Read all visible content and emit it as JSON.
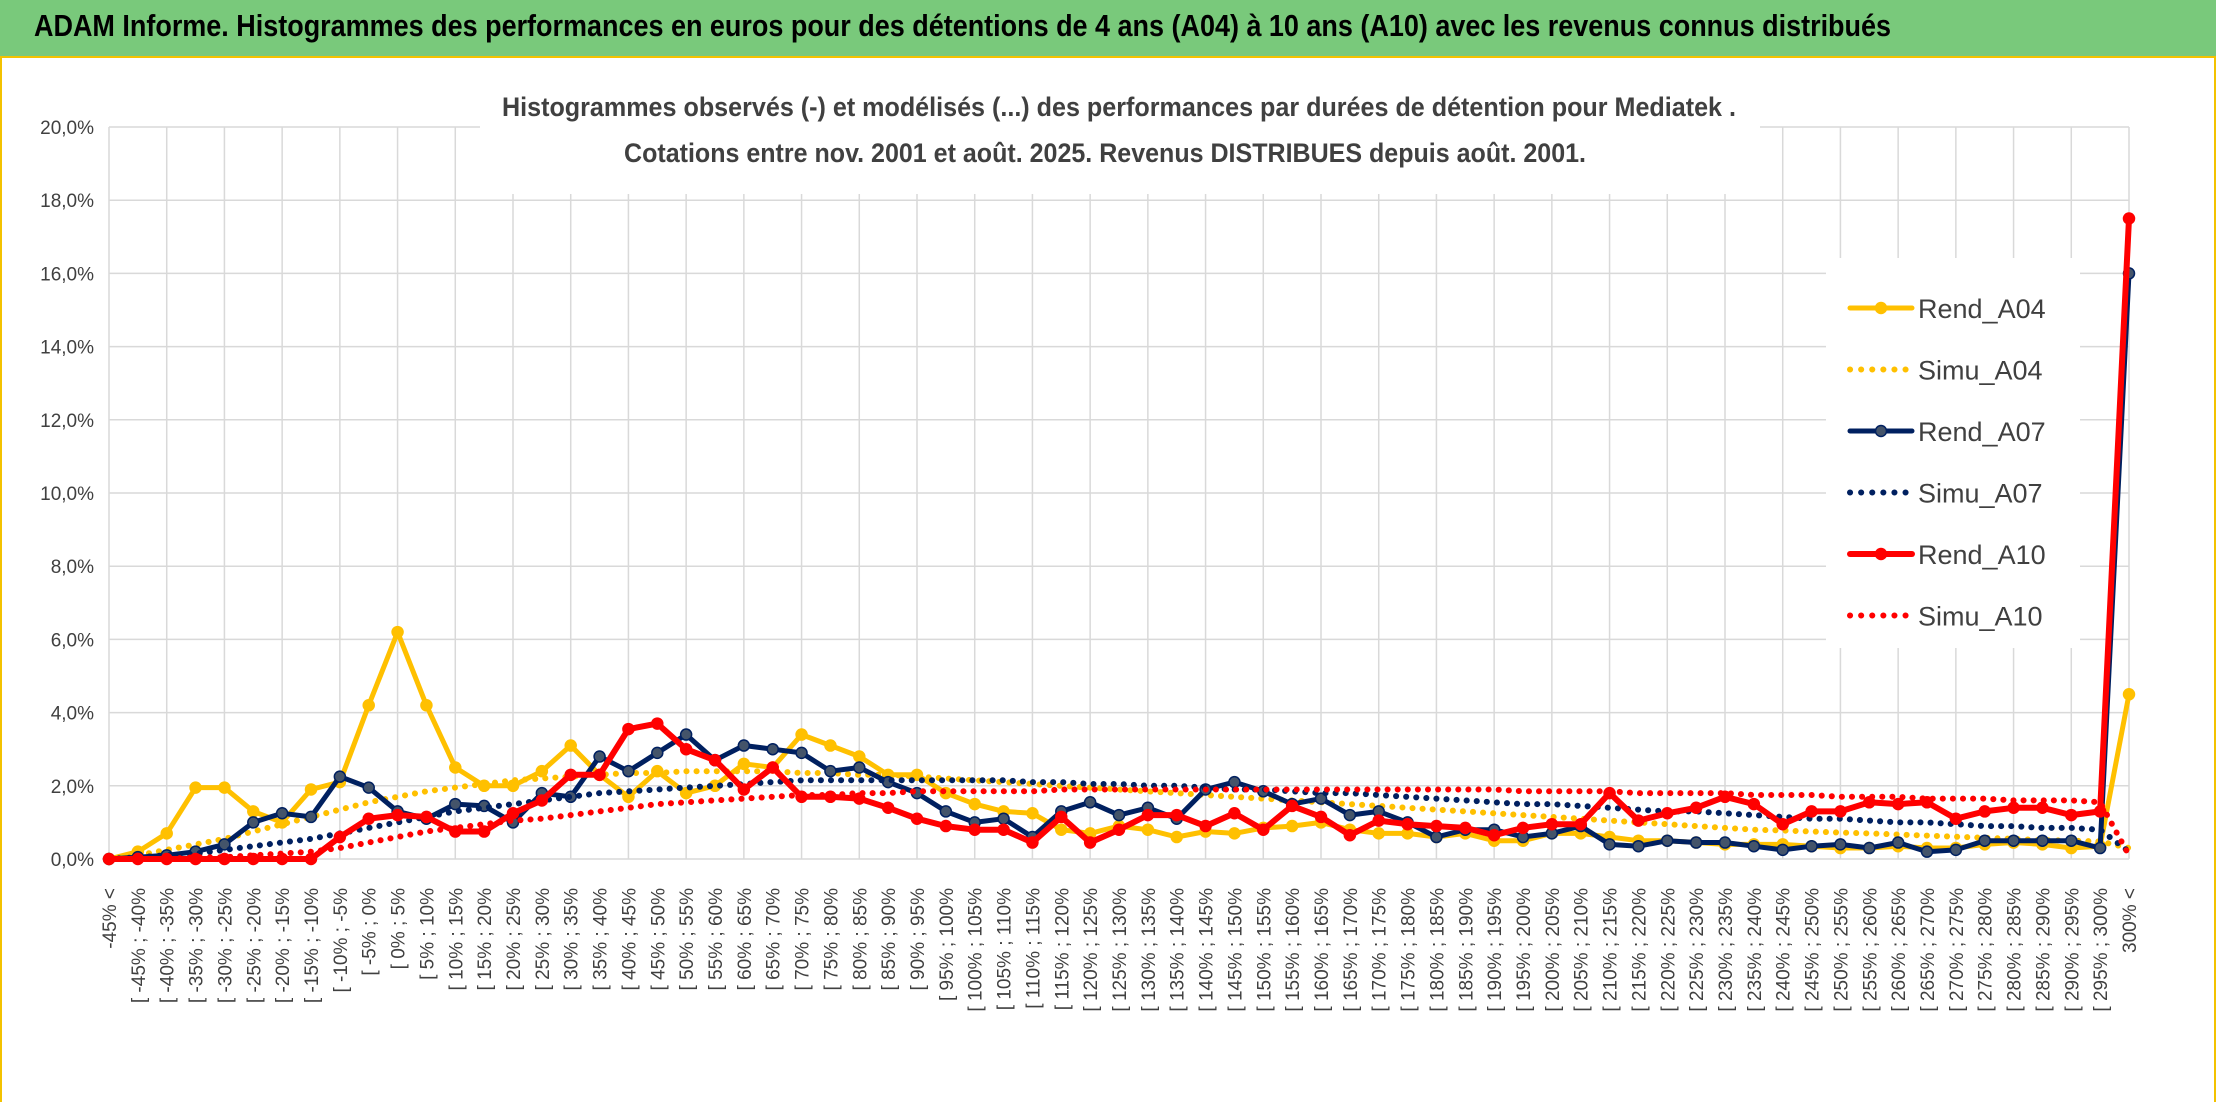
{
  "header": {
    "title": "ADAM Informe. Histogrammes des performances en euros pour des détentions de 4 ans (A04) à 10 ans (A10) avec les revenus connus distribués"
  },
  "chart_data": {
    "type": "line",
    "title_line1": "Histogrammes observés (-) et modélisés (...) des performances par durées de détention pour Mediatek .",
    "title_line2": "Cotations entre nov. 2001 et août. 2025. Revenus DISTRIBUES depuis août. 2001.",
    "ylim": [
      0,
      20
    ],
    "y_ticks": [
      "0,0%",
      "2,0%",
      "4,0%",
      "6,0%",
      "8,0%",
      "10,0%",
      "12,0%",
      "14,0%",
      "16,0%",
      "18,0%",
      "20,0%"
    ],
    "grid": true,
    "legend_position": "right",
    "categories": [
      "-45% <",
      "[ -45% ; -40%",
      "[ -40% ; -35%",
      "[ -35% ; -30%",
      "[ -30% ; -25%",
      "[ -25% ; -20%",
      "[ -20% ; -15%",
      "[ -15% ; -10%",
      "[ -10% ; -5%",
      "[ -5% ; 0%",
      "[ 0% ; 5%",
      "[ 5% ; 10%",
      "[ 10% ; 15%",
      "[ 15% ; 20%",
      "[ 20% ; 25%",
      "[ 25% ; 30%",
      "[ 30% ; 35%",
      "[ 35% ; 40%",
      "[ 40% ; 45%",
      "[ 45% ; 50%",
      "[ 50% ; 55%",
      "[ 55% ; 60%",
      "[ 60% ; 65%",
      "[ 65% ; 70%",
      "[ 70% ; 75%",
      "[ 75% ; 80%",
      "[ 80% ; 85%",
      "[ 85% ; 90%",
      "[ 90% ; 95%",
      "[ 95% ; 100%",
      "[ 100% ; 105%",
      "[ 105% ; 110%",
      "[ 110% ; 115%",
      "[ 115% ; 120%",
      "[ 120% ; 125%",
      "[ 125% ; 130%",
      "[ 130% ; 135%",
      "[ 135% ; 140%",
      "[ 140% ; 145%",
      "[ 145% ; 150%",
      "[ 150% ; 155%",
      "[ 155% ; 160%",
      "[ 160% ; 165%",
      "[ 165% ; 170%",
      "[ 170% ; 175%",
      "[ 175% ; 180%",
      "[ 180% ; 185%",
      "[ 185% ; 190%",
      "[ 190% ; 195%",
      "[ 195% ; 200%",
      "[ 200% ; 205%",
      "[ 205% ; 210%",
      "[ 210% ; 215%",
      "[ 215% ; 220%",
      "[ 220% ; 225%",
      "[ 225% ; 230%",
      "[ 230% ; 235%",
      "[ 235% ; 240%",
      "[ 240% ; 245%",
      "[ 245% ; 250%",
      "[ 250% ; 255%",
      "[ 255% ; 260%",
      "[ 260% ; 265%",
      "[ 265% ; 270%",
      "[ 270% ; 275%",
      "[ 275% ; 280%",
      "[ 280% ; 285%",
      "[ 285% ; 290%",
      "[ 290% ; 295%",
      "[ 295% ; 300%",
      "300% <"
    ],
    "series": [
      {
        "name": "Rend_A04",
        "style": "solid",
        "color": "#ffc000",
        "width": 5,
        "markers": true,
        "values": [
          0,
          0.2,
          0.7,
          1.95,
          1.95,
          1.3,
          1.0,
          1.9,
          2.1,
          4.2,
          6.2,
          4.2,
          2.5,
          2.0,
          2.0,
          2.4,
          3.1,
          2.3,
          1.7,
          2.4,
          1.8,
          2.0,
          2.6,
          2.5,
          3.4,
          3.1,
          2.8,
          2.3,
          2.3,
          1.8,
          1.5,
          1.3,
          1.25,
          0.8,
          0.7,
          0.9,
          0.8,
          0.6,
          0.75,
          0.7,
          0.85,
          0.9,
          1.0,
          0.8,
          0.7,
          0.7,
          0.6,
          0.7,
          0.5,
          0.5,
          0.7,
          0.7,
          0.6,
          0.5,
          0.5,
          0.45,
          0.4,
          0.4,
          0.4,
          0.35,
          0.3,
          0.3,
          0.35,
          0.3,
          0.3,
          0.4,
          0.45,
          0.4,
          0.3,
          0.35,
          4.5
        ]
      },
      {
        "name": "Simu_A04",
        "style": "dotted",
        "color": "#ffc000",
        "width": 5,
        "markers": false,
        "values": [
          0,
          0.1,
          0.25,
          0.4,
          0.55,
          0.75,
          0.95,
          1.15,
          1.35,
          1.55,
          1.7,
          1.85,
          1.95,
          2.05,
          2.15,
          2.2,
          2.25,
          2.3,
          2.35,
          2.35,
          2.4,
          2.4,
          2.4,
          2.4,
          2.35,
          2.35,
          2.3,
          2.3,
          2.25,
          2.2,
          2.15,
          2.1,
          2.05,
          2.0,
          1.95,
          1.9,
          1.85,
          1.8,
          1.75,
          1.7,
          1.65,
          1.6,
          1.55,
          1.5,
          1.45,
          1.4,
          1.35,
          1.3,
          1.25,
          1.2,
          1.15,
          1.1,
          1.05,
          1.0,
          0.95,
          0.9,
          0.85,
          0.8,
          0.78,
          0.75,
          0.72,
          0.7,
          0.67,
          0.64,
          0.61,
          0.58,
          0.55,
          0.52,
          0.5,
          0.48,
          0.3
        ]
      },
      {
        "name": "Rend_A07",
        "style": "solid",
        "color": "#002060",
        "width": 5,
        "markers": true,
        "values": [
          0,
          0.05,
          0.1,
          0.2,
          0.4,
          1.0,
          1.25,
          1.15,
          2.25,
          1.95,
          1.3,
          1.1,
          1.5,
          1.45,
          1.0,
          1.8,
          1.7,
          2.8,
          2.4,
          2.9,
          3.4,
          2.7,
          3.1,
          3.0,
          2.9,
          2.4,
          2.5,
          2.1,
          1.8,
          1.3,
          1.0,
          1.1,
          0.6,
          1.3,
          1.55,
          1.2,
          1.4,
          1.1,
          1.9,
          2.1,
          1.85,
          1.5,
          1.65,
          1.2,
          1.3,
          1.0,
          0.6,
          0.8,
          0.8,
          0.6,
          0.7,
          0.9,
          0.4,
          0.35,
          0.5,
          0.45,
          0.45,
          0.35,
          0.25,
          0.35,
          0.4,
          0.3,
          0.45,
          0.2,
          0.25,
          0.5,
          0.5,
          0.5,
          0.5,
          0.3,
          16.0
        ]
      },
      {
        "name": "Simu_A07",
        "style": "dotted",
        "color": "#002060",
        "width": 5,
        "markers": false,
        "values": [
          0,
          0.05,
          0.1,
          0.15,
          0.25,
          0.35,
          0.45,
          0.55,
          0.7,
          0.85,
          1.0,
          1.15,
          1.3,
          1.4,
          1.5,
          1.6,
          1.7,
          1.8,
          1.85,
          1.9,
          1.95,
          2.0,
          2.05,
          2.1,
          2.15,
          2.15,
          2.15,
          2.15,
          2.15,
          2.15,
          2.15,
          2.15,
          2.1,
          2.1,
          2.05,
          2.05,
          2.0,
          2.0,
          1.95,
          1.9,
          1.9,
          1.85,
          1.8,
          1.8,
          1.75,
          1.7,
          1.65,
          1.6,
          1.55,
          1.5,
          1.5,
          1.45,
          1.4,
          1.35,
          1.3,
          1.3,
          1.25,
          1.2,
          1.15,
          1.1,
          1.1,
          1.05,
          1.0,
          1.0,
          0.95,
          0.9,
          0.9,
          0.85,
          0.85,
          0.8,
          0.2
        ]
      },
      {
        "name": "Rend_A10",
        "style": "solid",
        "color": "#ff0000",
        "width": 6,
        "markers": true,
        "values": [
          0,
          0,
          0,
          0,
          0,
          0,
          0,
          0,
          0.6,
          1.1,
          1.2,
          1.15,
          0.75,
          0.75,
          1.25,
          1.6,
          2.3,
          2.3,
          3.55,
          3.7,
          3.0,
          2.7,
          1.9,
          2.5,
          1.7,
          1.7,
          1.65,
          1.4,
          1.1,
          0.9,
          0.8,
          0.8,
          0.45,
          1.15,
          0.45,
          0.8,
          1.2,
          1.2,
          0.9,
          1.25,
          0.8,
          1.45,
          1.15,
          0.65,
          1.05,
          0.95,
          0.9,
          0.85,
          0.65,
          0.85,
          0.95,
          0.95,
          1.8,
          1.05,
          1.25,
          1.4,
          1.7,
          1.5,
          0.95,
          1.3,
          1.3,
          1.55,
          1.5,
          1.55,
          1.1,
          1.3,
          1.4,
          1.4,
          1.2,
          1.3,
          17.5
        ]
      },
      {
        "name": "Simu_A10",
        "style": "dotted",
        "color": "#ff0000",
        "width": 5,
        "markers": false,
        "values": [
          0,
          0,
          0,
          0.05,
          0.05,
          0.1,
          0.15,
          0.2,
          0.3,
          0.45,
          0.6,
          0.75,
          0.85,
          0.95,
          1.05,
          1.1,
          1.2,
          1.3,
          1.4,
          1.5,
          1.55,
          1.6,
          1.65,
          1.7,
          1.75,
          1.75,
          1.8,
          1.8,
          1.85,
          1.85,
          1.85,
          1.85,
          1.85,
          1.9,
          1.9,
          1.9,
          1.9,
          1.9,
          1.9,
          1.9,
          1.9,
          1.9,
          1.9,
          1.9,
          1.9,
          1.9,
          1.9,
          1.9,
          1.9,
          1.85,
          1.85,
          1.85,
          1.85,
          1.8,
          1.8,
          1.8,
          1.8,
          1.75,
          1.75,
          1.75,
          1.7,
          1.7,
          1.7,
          1.65,
          1.65,
          1.65,
          1.6,
          1.6,
          1.6,
          1.55,
          0.1
        ]
      }
    ]
  }
}
